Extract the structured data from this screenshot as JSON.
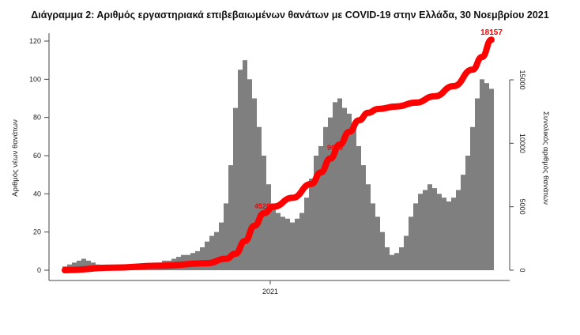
{
  "chart_data": {
    "type": "bar",
    "title": "Διάγραμμα 2: Αριθμός εργαστηριακά επιβεβαιωμένων θανάτων με COVID-19 στην Ελλάδα, 30 Νοεμβρίου 2021",
    "ylabel": "Αριθμός νέων θανάτων",
    "y2label": "Συνολικός αριθμός θανάτων",
    "x_ticks": [
      "2021"
    ],
    "ylim": [
      0,
      120
    ],
    "y_ticks": [
      0,
      20,
      40,
      60,
      80,
      100,
      120
    ],
    "y2lim": [
      0,
      18157
    ],
    "y2_ticks": [
      0,
      5000,
      10000,
      15000
    ],
    "grid": false,
    "colors": {
      "bars": "#7f7f7f",
      "cumulative": "#ff0000"
    },
    "series": [
      {
        "type": "bar",
        "axis": "left",
        "values": [
          2,
          3,
          4,
          5,
          6,
          5,
          4,
          3,
          2,
          1,
          1,
          1,
          1,
          1,
          2,
          2,
          3,
          3,
          3,
          4,
          4,
          5,
          5,
          6,
          7,
          8,
          8,
          9,
          10,
          12,
          15,
          18,
          20,
          25,
          35,
          55,
          85,
          105,
          110,
          100,
          90,
          75,
          60,
          45,
          35,
          30,
          28,
          27,
          25,
          27,
          30,
          38,
          48,
          60,
          65,
          75,
          80,
          88,
          90,
          85,
          82,
          75,
          65,
          55,
          45,
          35,
          28,
          20,
          12,
          8,
          9,
          12,
          18,
          28,
          35,
          40,
          42,
          45,
          43,
          40,
          38,
          36,
          38,
          42,
          50,
          60,
          75,
          90,
          100,
          98,
          95
        ]
      },
      {
        "type": "line",
        "axis": "right",
        "points": [
          [
            0,
            0
          ],
          [
            10,
            200
          ],
          [
            20,
            350
          ],
          [
            30,
            550
          ],
          [
            34,
            900
          ],
          [
            36,
            1300
          ],
          [
            38,
            2300
          ],
          [
            40,
            3500
          ],
          [
            42,
            4500
          ],
          [
            44,
            5000
          ],
          [
            48,
            5700
          ],
          [
            52,
            6800
          ],
          [
            54,
            7700
          ],
          [
            56,
            8800
          ],
          [
            58,
            9900
          ],
          [
            60,
            10900
          ],
          [
            62,
            11800
          ],
          [
            64,
            12400
          ],
          [
            66,
            12700
          ],
          [
            70,
            12900
          ],
          [
            74,
            13200
          ],
          [
            78,
            13700
          ],
          [
            82,
            14500
          ],
          [
            86,
            15800
          ],
          [
            88,
            16800
          ],
          [
            90,
            18157
          ]
        ]
      }
    ],
    "annotations": [
      {
        "text": "4520",
        "value": 4520
      },
      {
        "text": "9050",
        "value": 9050
      },
      {
        "text": "18157",
        "value": 18157
      }
    ]
  }
}
